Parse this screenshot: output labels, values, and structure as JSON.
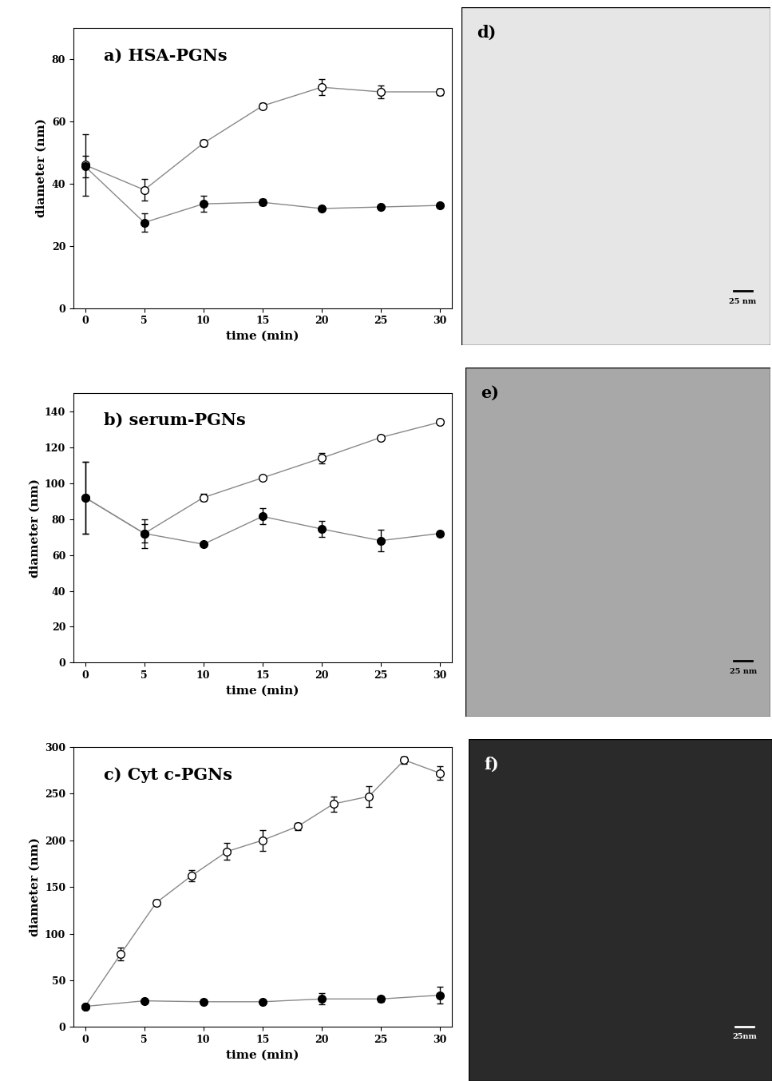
{
  "chart_data": [
    {
      "type": "line",
      "title": "a) HSA-PGNs",
      "x_label": "time (min)",
      "y_label": "diameter (nm)",
      "xlim": [
        -1,
        31
      ],
      "xticks": [
        0,
        5,
        10,
        15,
        20,
        25,
        30
      ],
      "ylim": [
        0,
        90
      ],
      "yticks": [
        0,
        20,
        40,
        60,
        80
      ],
      "series": [
        {
          "color": "white",
          "marker": "o",
          "x": [
            0,
            5,
            10,
            15,
            20,
            25,
            30
          ],
          "values": [
            46,
            38,
            53,
            65,
            71,
            69.5,
            69.5
          ],
          "errors": [
            10,
            3.5,
            1,
            1,
            2.5,
            2,
            1
          ]
        },
        {
          "color": "black",
          "marker": "o",
          "x": [
            0,
            5,
            10,
            15,
            20,
            25,
            30
          ],
          "values": [
            45.5,
            27.5,
            33.5,
            34,
            32,
            32.5,
            33
          ],
          "errors": [
            3.5,
            3,
            2.5,
            1,
            0.5,
            0.5,
            0.5
          ]
        }
      ]
    },
    {
      "type": "line",
      "title": "b) serum-PGNs",
      "x_label": "time (min)",
      "y_label": "diameter (nm)",
      "xlim": [
        -1,
        31
      ],
      "xticks": [
        0,
        5,
        10,
        15,
        20,
        25,
        30
      ],
      "ylim": [
        0,
        150
      ],
      "yticks": [
        0,
        20,
        40,
        60,
        80,
        100,
        120,
        140
      ],
      "series": [
        {
          "color": "white",
          "marker": "o",
          "x": [
            0,
            5,
            10,
            15,
            20,
            25,
            30
          ],
          "values": [
            92,
            72,
            92,
            103,
            114,
            125.5,
            134
          ],
          "errors": [
            20,
            8,
            2,
            1,
            3,
            1,
            1
          ]
        },
        {
          "color": "black",
          "marker": "o",
          "x": [
            0,
            5,
            10,
            15,
            20,
            25,
            30
          ],
          "values": [
            92,
            72,
            66,
            81.5,
            74.5,
            68,
            72
          ],
          "errors": [
            20,
            5,
            1,
            4.5,
            4.5,
            6,
            1
          ]
        }
      ]
    },
    {
      "type": "line",
      "title": "c) Cyt c-PGNs",
      "x_label": "time (min)",
      "y_label": "diameter (nm)",
      "xlim": [
        -1,
        31
      ],
      "xticks": [
        0,
        5,
        10,
        15,
        20,
        25,
        30
      ],
      "ylim": [
        0,
        300
      ],
      "yticks": [
        0,
        50,
        100,
        150,
        200,
        250,
        300
      ],
      "series": [
        {
          "color": "white",
          "marker": "o",
          "x": [
            0,
            3,
            6,
            9,
            12,
            15,
            18,
            21,
            24,
            27,
            30
          ],
          "values": [
            22,
            78,
            133,
            162,
            188,
            200,
            215,
            239,
            247,
            286,
            272
          ],
          "errors": [
            1,
            7,
            3,
            6,
            9,
            11,
            4,
            8,
            11,
            4,
            7
          ]
        },
        {
          "color": "black",
          "marker": "o",
          "x": [
            0,
            5,
            10,
            15,
            20,
            25,
            30
          ],
          "values": [
            22,
            28,
            27,
            27,
            30,
            30,
            34
          ],
          "errors": [
            1,
            1,
            2,
            1,
            6,
            3,
            9
          ]
        }
      ]
    }
  ],
  "images": [
    {
      "label": "d)",
      "scale_bar": "25 nm",
      "color": "#e6e6e6"
    },
    {
      "label": "e)",
      "scale_bar": "25 nm",
      "color": "#a8a8a8"
    },
    {
      "label": "f)",
      "scale_bar": "25nm",
      "color": "#2a2a2a"
    }
  ]
}
